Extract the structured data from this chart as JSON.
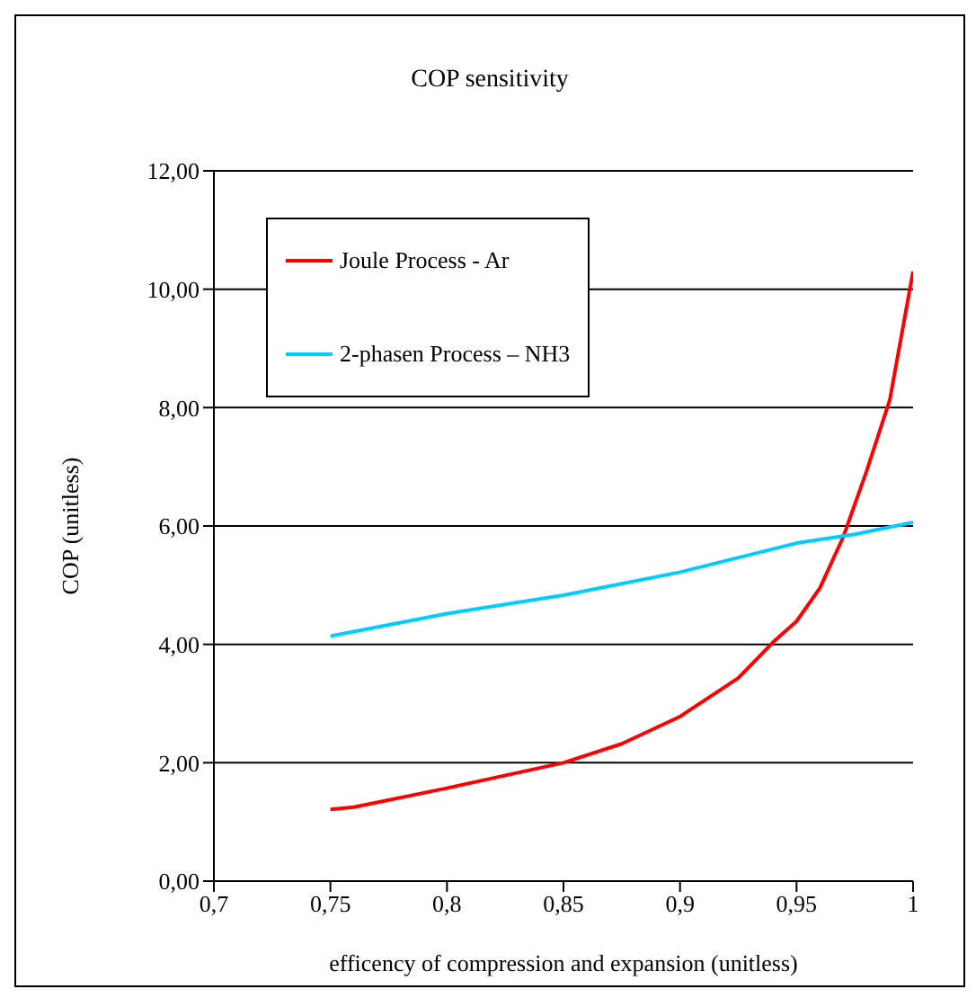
{
  "chart_data": {
    "type": "line",
    "title": "COP sensitivity",
    "xlabel": "efficency of compression and expansion (unitless)",
    "ylabel": "COP (unitless)",
    "series": [
      {
        "name": "Joule Process - Ar",
        "color": "#ff0000",
        "x": [
          0.75,
          0.76,
          0.8,
          0.85,
          0.875,
          0.9,
          0.925,
          0.94,
          0.95,
          0.96,
          0.97,
          0.98,
          0.99,
          1.0
        ],
        "values": [
          1.21,
          1.25,
          1.57,
          2.0,
          2.32,
          2.78,
          3.43,
          4.04,
          4.39,
          4.95,
          5.81,
          6.92,
          8.13,
          10.3
        ]
      },
      {
        "name": "2-phasen Process – NH3",
        "color": "#00ccff",
        "x": [
          0.75,
          0.8,
          0.85,
          0.9,
          0.95,
          0.975,
          1.0
        ],
        "values": [
          4.14,
          4.52,
          4.83,
          5.22,
          5.71,
          5.86,
          6.06
        ]
      }
    ],
    "xlim": [
      0.7,
      1.0
    ],
    "xticks": [
      {
        "value": 0.7,
        "label": "0,7"
      },
      {
        "value": 0.75,
        "label": "0,75"
      },
      {
        "value": 0.8,
        "label": "0,8"
      },
      {
        "value": 0.85,
        "label": "0,85"
      },
      {
        "value": 0.9,
        "label": "0,9"
      },
      {
        "value": 0.95,
        "label": "0,95"
      },
      {
        "value": 1.0,
        "label": "1"
      }
    ],
    "ylim": [
      0,
      12
    ],
    "yticks": [
      {
        "value": 0,
        "label": "0,00"
      },
      {
        "value": 2,
        "label": "2,00"
      },
      {
        "value": 4,
        "label": "4,00"
      },
      {
        "value": 6,
        "label": "6,00"
      },
      {
        "value": 8,
        "label": "8,00"
      },
      {
        "value": 10,
        "label": "10,00"
      },
      {
        "value": 12,
        "label": "12,00"
      }
    ],
    "grid": "y",
    "legend": "top left",
    "marker": "none",
    "line_style": "solid"
  }
}
